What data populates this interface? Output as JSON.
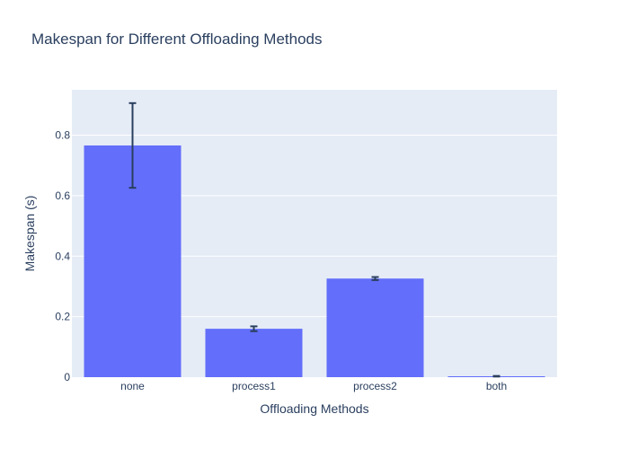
{
  "chart_data": {
    "type": "bar",
    "title": "Makespan for Different Offloading Methods",
    "xlabel": "Offloading Methods",
    "ylabel": "Makespan (s)",
    "categories": [
      "none",
      "process1",
      "process2",
      "both"
    ],
    "values": [
      0.766,
      0.16,
      0.326,
      0.003
    ],
    "errors": [
      0.14,
      0.008,
      0.005,
      0.001
    ],
    "ylim": [
      0,
      0.95
    ],
    "yticks": [
      0,
      0.2,
      0.4,
      0.6,
      0.8
    ],
    "ytick_labels": [
      "0",
      "0.2",
      "0.4",
      "0.6",
      "0.8"
    ],
    "grid": true,
    "colors": {
      "bar": "#636efa",
      "plot_bg": "#e5ecf6",
      "grid": "#ffffff",
      "error_bar": "#2a3f5f",
      "text": "#2a3f5f"
    }
  }
}
